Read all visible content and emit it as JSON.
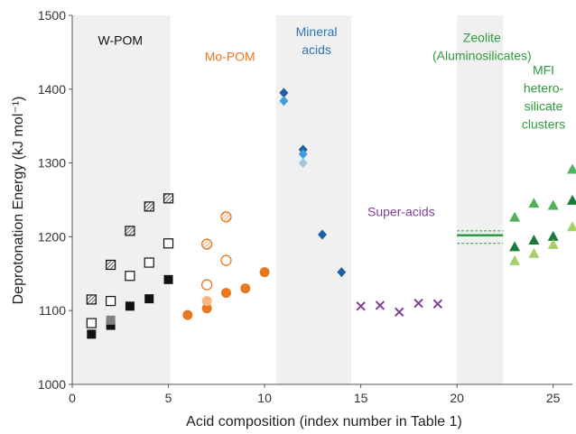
{
  "chart_data": {
    "type": "scatter",
    "xlabel": "Acid composition (index number in Table 1)",
    "ylabel": "Deprotonation Energy (kJ mol⁻¹)",
    "xlim": [
      0,
      26
    ],
    "ylim": [
      1000,
      1500
    ],
    "xticks": [
      "0",
      "5",
      "10",
      "15",
      "20",
      "25"
    ],
    "yticks": [
      "1000",
      "1100",
      "1200",
      "1300",
      "1400",
      "1500"
    ],
    "grid": false,
    "bands": [
      [
        0,
        5.1
      ],
      [
        10.6,
        14.5
      ],
      [
        20,
        22.4
      ]
    ],
    "annotations": [
      {
        "lines": [
          "W-POM"
        ],
        "x": 2.5,
        "y": 1460,
        "color": "#111111"
      },
      {
        "lines": [
          "Mo-POM"
        ],
        "x": 8.2,
        "y": 1438,
        "color": "#e87722"
      },
      {
        "lines": [
          "Mineral",
          "acids"
        ],
        "x": 12.7,
        "y": 1472,
        "color": "#2e75b6"
      },
      {
        "lines": [
          "Super-acids"
        ],
        "x": 17.1,
        "y": 1228,
        "color": "#7f3f98"
      },
      {
        "lines": [
          "Zeolite",
          "(Aluminosilicates)"
        ],
        "x": 21.3,
        "y": 1464,
        "color": "#2e9a3f"
      },
      {
        "lines": [
          "MFI",
          "hetero-",
          "silicate",
          "clusters"
        ],
        "x": 24.5,
        "y": 1420,
        "color": "#2e9a3f"
      }
    ],
    "series": [
      {
        "marker": "hatched-square",
        "color": "#111111",
        "points": [
          [
            1,
            1115
          ],
          [
            2,
            1162
          ],
          [
            3,
            1208
          ],
          [
            4,
            1241
          ],
          [
            5,
            1252
          ]
        ]
      },
      {
        "marker": "open-square",
        "color": "#111111",
        "points": [
          [
            1,
            1083
          ],
          [
            2,
            1113
          ],
          [
            3,
            1147
          ],
          [
            4,
            1165
          ],
          [
            5,
            1191
          ]
        ]
      },
      {
        "marker": "filled-square",
        "color": "#111111",
        "points": [
          [
            1,
            1068
          ],
          [
            2,
            1080
          ],
          [
            3,
            1106
          ],
          [
            4,
            1116
          ],
          [
            5,
            1142
          ]
        ]
      },
      {
        "marker": "filled-square",
        "color": "#808080",
        "points": [
          [
            2,
            1087
          ]
        ]
      },
      {
        "marker": "hatched-circle",
        "color": "#e87722",
        "points": [
          [
            7,
            1190
          ],
          [
            8,
            1227
          ]
        ]
      },
      {
        "marker": "open-circle",
        "color": "#e87722",
        "points": [
          [
            7,
            1135
          ],
          [
            8,
            1168
          ]
        ]
      },
      {
        "marker": "filled-circle",
        "color": "#e87722",
        "points": [
          [
            6,
            1094
          ],
          [
            7,
            1103
          ],
          [
            8,
            1124
          ],
          [
            9,
            1130
          ],
          [
            10,
            1152
          ]
        ]
      },
      {
        "marker": "filled-circle",
        "color": "#f5b784",
        "points": [
          [
            7,
            1113
          ]
        ]
      },
      {
        "marker": "diamond",
        "color": "#1f5fa8",
        "points": [
          [
            11,
            1395
          ],
          [
            12,
            1318
          ],
          [
            13,
            1203
          ],
          [
            14,
            1152
          ]
        ]
      },
      {
        "marker": "diamond",
        "color": "#3fa1dc",
        "points": [
          [
            11,
            1384
          ],
          [
            12,
            1312
          ]
        ]
      },
      {
        "marker": "diamond",
        "color": "#9cc9e6",
        "points": [
          [
            12,
            1300
          ]
        ]
      },
      {
        "marker": "cross",
        "color": "#7f3f98",
        "points": [
          [
            15,
            1106
          ],
          [
            16,
            1107
          ],
          [
            17,
            1098
          ],
          [
            18,
            1110
          ],
          [
            19,
            1109
          ]
        ]
      },
      {
        "marker": "triangle",
        "color": "#1b7a3a",
        "points": [
          [
            23,
            1186
          ],
          [
            24,
            1195
          ],
          [
            25,
            1200
          ],
          [
            26,
            1249
          ]
        ]
      },
      {
        "marker": "triangle",
        "color": "#4fb35a",
        "points": [
          [
            23,
            1226
          ],
          [
            24,
            1245
          ],
          [
            25,
            1242
          ],
          [
            26,
            1291
          ]
        ]
      },
      {
        "marker": "triangle",
        "color": "#a6d16a",
        "points": [
          [
            23,
            1167
          ],
          [
            24,
            1177
          ],
          [
            25,
            1189
          ],
          [
            26,
            1213
          ]
        ]
      }
    ],
    "zeolite_band": {
      "color": "#2e9a3f",
      "x": [
        20,
        22.4
      ],
      "y": 1202,
      "dashed": [
        1208,
        1191
      ]
    }
  }
}
